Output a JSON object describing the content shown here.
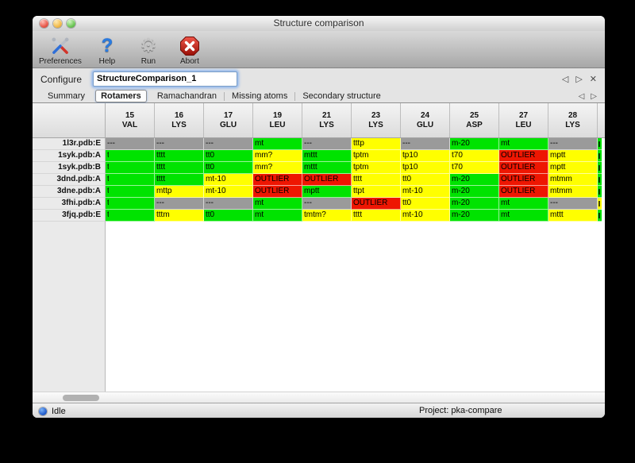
{
  "window": {
    "title": "Structure comparison"
  },
  "toolbar": {
    "buttons": [
      {
        "label": "Preferences",
        "icon": "tools-icon"
      },
      {
        "label": "Help",
        "icon": "help-icon",
        "glyph": "?"
      },
      {
        "label": "Run",
        "icon": "gear-icon",
        "glyph": "⚙"
      },
      {
        "label": "Abort",
        "icon": "abort-icon"
      }
    ]
  },
  "configure": {
    "label": "Configure",
    "value": "StructureComparison_1",
    "nav_prev": "◁",
    "nav_next": "▷",
    "close": "✕"
  },
  "tabs": {
    "items": [
      {
        "label": "Summary",
        "active": false
      },
      {
        "label": "Rotamers",
        "active": true
      },
      {
        "label": "Ramachandran",
        "active": false
      },
      {
        "label": "Missing atoms",
        "active": false
      },
      {
        "label": "Secondary structure",
        "active": false
      }
    ],
    "nav_prev": "◁",
    "nav_next": "▷"
  },
  "cell_colors": {
    "green": "#00e300",
    "yellow": "#ffff00",
    "red": "#ee1602",
    "gray": "#9a9a9a"
  },
  "table": {
    "columns": [
      {
        "num": "15",
        "res": "VAL"
      },
      {
        "num": "16",
        "res": "LYS"
      },
      {
        "num": "17",
        "res": "GLU"
      },
      {
        "num": "19",
        "res": "LEU"
      },
      {
        "num": "21",
        "res": "LYS"
      },
      {
        "num": "23",
        "res": "LYS"
      },
      {
        "num": "24",
        "res": "GLU"
      },
      {
        "num": "25",
        "res": "ASP"
      },
      {
        "num": "27",
        "res": "LEU"
      },
      {
        "num": "28",
        "res": "LYS"
      }
    ],
    "rows": [
      {
        "label": "1l3r.pdb:E",
        "overflow": "green",
        "cells": [
          {
            "c": "gray",
            "t": "---"
          },
          {
            "c": "gray",
            "t": "---"
          },
          {
            "c": "gray",
            "t": "---"
          },
          {
            "c": "green",
            "t": "mt"
          },
          {
            "c": "gray",
            "t": "---"
          },
          {
            "c": "yellow",
            "t": "tttp"
          },
          {
            "c": "gray",
            "t": "---"
          },
          {
            "c": "green",
            "t": "m-20"
          },
          {
            "c": "green",
            "t": "mt"
          },
          {
            "c": "gray",
            "t": "---"
          }
        ]
      },
      {
        "label": "1syk.pdb:A",
        "overflow": "green",
        "cells": [
          {
            "c": "green",
            "t": "t",
            "clipped": true
          },
          {
            "c": "green",
            "t": "tttt"
          },
          {
            "c": "green",
            "t": "tt0"
          },
          {
            "c": "yellow",
            "t": "mm?"
          },
          {
            "c": "green",
            "t": "mttt"
          },
          {
            "c": "yellow",
            "t": "tptm"
          },
          {
            "c": "yellow",
            "t": "tp10"
          },
          {
            "c": "yellow",
            "t": "t70"
          },
          {
            "c": "red",
            "t": "OUTLIER"
          },
          {
            "c": "yellow",
            "t": "mptt"
          }
        ]
      },
      {
        "label": "1syk.pdb:B",
        "overflow": "green",
        "cells": [
          {
            "c": "green",
            "t": "t",
            "clipped": true
          },
          {
            "c": "green",
            "t": "tttt"
          },
          {
            "c": "green",
            "t": "tt0"
          },
          {
            "c": "yellow",
            "t": "mm?"
          },
          {
            "c": "green",
            "t": "mttt"
          },
          {
            "c": "yellow",
            "t": "tptm"
          },
          {
            "c": "yellow",
            "t": "tp10"
          },
          {
            "c": "yellow",
            "t": "t70"
          },
          {
            "c": "red",
            "t": "OUTLIER"
          },
          {
            "c": "yellow",
            "t": "mptt"
          }
        ]
      },
      {
        "label": "3dnd.pdb:A",
        "overflow": "green",
        "cells": [
          {
            "c": "green",
            "t": "t",
            "clipped": true
          },
          {
            "c": "green",
            "t": "tttt"
          },
          {
            "c": "yellow",
            "t": "mt-10"
          },
          {
            "c": "red",
            "t": "OUTLIER"
          },
          {
            "c": "red",
            "t": "OUTLIER"
          },
          {
            "c": "yellow",
            "t": "tttt"
          },
          {
            "c": "yellow",
            "t": "tt0"
          },
          {
            "c": "green",
            "t": "m-20"
          },
          {
            "c": "red",
            "t": "OUTLIER"
          },
          {
            "c": "yellow",
            "t": "mtmm"
          }
        ]
      },
      {
        "label": "3dne.pdb:A",
        "overflow": "green",
        "cells": [
          {
            "c": "green",
            "t": "t",
            "clipped": true
          },
          {
            "c": "yellow",
            "t": "mttp"
          },
          {
            "c": "yellow",
            "t": "mt-10"
          },
          {
            "c": "red",
            "t": "OUTLIER"
          },
          {
            "c": "green",
            "t": "mptt"
          },
          {
            "c": "yellow",
            "t": "ttpt"
          },
          {
            "c": "yellow",
            "t": "mt-10"
          },
          {
            "c": "green",
            "t": "m-20"
          },
          {
            "c": "red",
            "t": "OUTLIER"
          },
          {
            "c": "yellow",
            "t": "mtmm"
          }
        ]
      },
      {
        "label": "3fhi.pdb:A",
        "overflow": "yellow",
        "cells": [
          {
            "c": "green",
            "t": "t",
            "clipped": true
          },
          {
            "c": "gray",
            "t": "---"
          },
          {
            "c": "gray",
            "t": "---"
          },
          {
            "c": "green",
            "t": "mt"
          },
          {
            "c": "gray",
            "t": "---"
          },
          {
            "c": "red",
            "t": "OUTLIER"
          },
          {
            "c": "yellow",
            "t": "tt0"
          },
          {
            "c": "green",
            "t": "m-20"
          },
          {
            "c": "green",
            "t": "mt"
          },
          {
            "c": "gray",
            "t": "---"
          }
        ]
      },
      {
        "label": "3fjq.pdb:E",
        "overflow": "green",
        "cells": [
          {
            "c": "green",
            "t": "t",
            "clipped": true
          },
          {
            "c": "yellow",
            "t": "tttm"
          },
          {
            "c": "green",
            "t": "tt0"
          },
          {
            "c": "green",
            "t": "mt"
          },
          {
            "c": "yellow",
            "t": "tmtm?"
          },
          {
            "c": "yellow",
            "t": "tttt"
          },
          {
            "c": "yellow",
            "t": "mt-10"
          },
          {
            "c": "green",
            "t": "m-20"
          },
          {
            "c": "green",
            "t": "mt"
          },
          {
            "c": "yellow",
            "t": "mttt"
          }
        ]
      }
    ]
  },
  "statusbar": {
    "status": "Idle",
    "project": "Project: pka-compare"
  }
}
